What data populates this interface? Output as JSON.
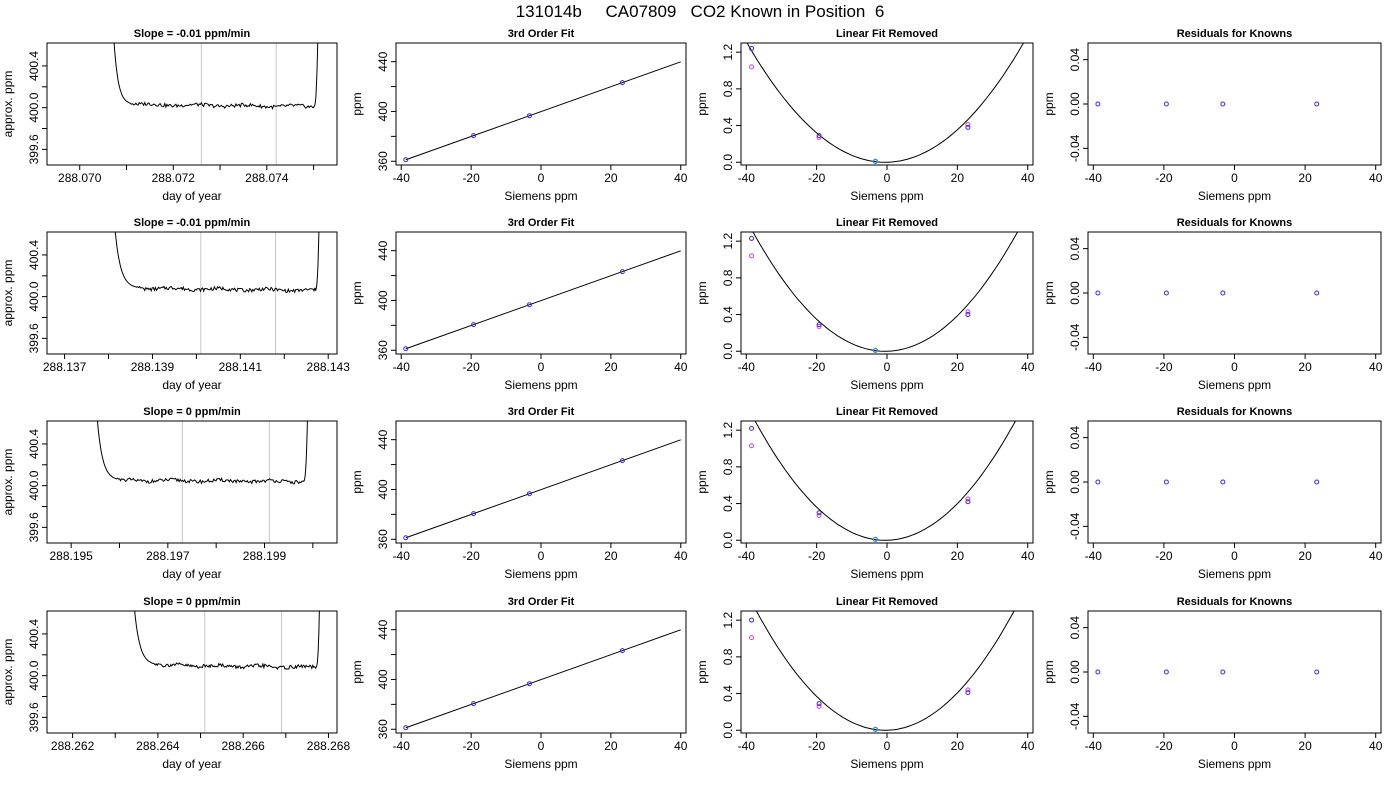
{
  "figure": {
    "title": "131014b     CA07809   CO2 Known in Position  6"
  },
  "colors": {
    "trace": "#000000",
    "marker_lines": "#c8c8c8",
    "point_blue": "#3b2bd6",
    "point_magenta": "#d040d0",
    "point_cyan": "#1ea0d8",
    "axis": "#000000"
  },
  "chart_data": [
    {
      "type": "line",
      "panel": "row1-time",
      "title": "Slope =  -0.01  ppm/min",
      "xlabel": "day of year",
      "ylabel": "approx. ppm",
      "xlim": [
        288.0693,
        288.0755
      ],
      "ylim": [
        399.45,
        400.62
      ],
      "x_ticks": [
        288.07,
        288.071,
        288.072,
        288.073,
        288.074,
        288.075
      ],
      "x_tick_labels": [
        "288.070",
        "",
        "288.072",
        "",
        "288.074",
        ""
      ],
      "y_ticks": [
        399.6,
        399.8,
        400.0,
        400.2,
        400.4
      ],
      "y_tick_labels": [
        "399.6",
        "",
        "400.0",
        "",
        "400.4"
      ],
      "markers_x": [
        288.0726,
        288.0742
      ],
      "trace": {
        "start": 288.0707,
        "plateau_start": 288.0712,
        "plateau_end": 288.075,
        "end": 288.0751,
        "plateau_left": 400.03,
        "plateau_right": 400.01,
        "top": 400.9
      }
    },
    {
      "type": "scatter",
      "panel": "row1-fit",
      "title": "3rd Order Fit",
      "xlabel": "Siemens ppm",
      "ylabel": "ppm",
      "xlim": [
        -41.5,
        41.5
      ],
      "ylim": [
        357,
        455
      ],
      "x_ticks": [
        -40,
        -20,
        0,
        20,
        40
      ],
      "y_ticks": [
        360,
        380,
        400,
        420,
        440
      ],
      "y_tick_labels": [
        "360",
        "",
        "400",
        "",
        "440"
      ],
      "points": [
        [
          -38.7,
          361.2
        ],
        [
          -19.3,
          380.6
        ],
        [
          -3.3,
          396.6
        ],
        [
          23.3,
          423.2
        ]
      ],
      "fit_line": [
        [
          -38.7,
          361.2
        ],
        [
          40,
          439.9
        ]
      ]
    },
    {
      "type": "scatter",
      "panel": "row1-linear-removed",
      "title": "Linear Fit Removed",
      "xlabel": "Siemens ppm",
      "ylabel": "ppm",
      "xlim": [
        -41.5,
        41.5
      ],
      "ylim": [
        -0.03,
        1.3
      ],
      "x_ticks": [
        -40,
        -20,
        0,
        20,
        40
      ],
      "y_ticks": [
        0.0,
        0.4,
        0.8,
        1.2
      ],
      "y_tick_labels": [
        "0.0",
        "0.4",
        "0.8",
        "1.2"
      ],
      "points_blue": [
        [
          -38.5,
          1.24
        ],
        [
          -19.3,
          0.29
        ],
        [
          -3.3,
          0.01
        ],
        [
          23.0,
          0.38
        ]
      ],
      "points_magenta": [
        [
          -38.5,
          1.04
        ],
        [
          -19.3,
          0.27
        ],
        [
          -3.3,
          0.01
        ],
        [
          23.0,
          0.41
        ]
      ],
      "points_cyan": [
        [
          -3.3,
          0.01
        ]
      ],
      "curve": {
        "vertex": -0.5,
        "a": 0.000842,
        "c": 0.0
      }
    },
    {
      "type": "scatter",
      "panel": "row1-residuals",
      "title": "Residuals for Knowns",
      "xlabel": "Siemens ppm",
      "ylabel": "ppm",
      "xlim": [
        -41.5,
        41.5
      ],
      "ylim": [
        -0.055,
        0.055
      ],
      "x_ticks": [
        -40,
        -20,
        0,
        20,
        40
      ],
      "y_ticks": [
        -0.04,
        0.0,
        0.04
      ],
      "y_tick_labels": [
        "-0.04",
        "0.00",
        "0.04"
      ],
      "points": [
        [
          -38.7,
          0.0
        ],
        [
          -19.3,
          0.0
        ],
        [
          -3.3,
          0.0
        ],
        [
          23.3,
          0.0
        ]
      ]
    },
    {
      "type": "line",
      "panel": "row2-time",
      "title": "Slope =  -0.01  ppm/min",
      "xlabel": "day of year",
      "ylabel": "approx. ppm",
      "xlim": [
        288.1366,
        288.1432
      ],
      "ylim": [
        399.45,
        400.62
      ],
      "x_ticks": [
        288.137,
        288.138,
        288.139,
        288.14,
        288.141,
        288.142,
        288.143
      ],
      "x_tick_labels": [
        "288.137",
        "",
        "288.139",
        "",
        "288.141",
        "",
        "288.143"
      ],
      "y_ticks": [
        399.6,
        399.8,
        400.0,
        400.2,
        400.4
      ],
      "y_tick_labels": [
        "399.6",
        "",
        "400.0",
        "",
        "400.4"
      ],
      "markers_x": [
        288.1401,
        288.1418
      ],
      "trace": {
        "start": 288.1381,
        "plateau_start": 288.1388,
        "plateau_end": 288.1427,
        "end": 288.1428,
        "plateau_left": 400.08,
        "plateau_right": 400.06,
        "top": 400.9
      }
    },
    {
      "type": "scatter",
      "panel": "row2-fit",
      "title": "3rd Order Fit",
      "xlabel": "Siemens ppm",
      "ylabel": "ppm",
      "xlim": [
        -41.5,
        41.5
      ],
      "ylim": [
        357,
        455
      ],
      "x_ticks": [
        -40,
        -20,
        0,
        20,
        40
      ],
      "y_ticks": [
        360,
        380,
        400,
        420,
        440
      ],
      "y_tick_labels": [
        "360",
        "",
        "400",
        "",
        "440"
      ],
      "points": [
        [
          -38.7,
          361.2
        ],
        [
          -19.3,
          380.6
        ],
        [
          -3.3,
          396.6
        ],
        [
          23.3,
          423.2
        ]
      ],
      "fit_line": [
        [
          -38.7,
          361.2
        ],
        [
          40,
          439.9
        ]
      ]
    },
    {
      "type": "scatter",
      "panel": "row2-linear-removed",
      "title": "Linear Fit Removed",
      "xlabel": "Siemens ppm",
      "ylabel": "ppm",
      "xlim": [
        -41.5,
        41.5
      ],
      "ylim": [
        -0.03,
        1.3
      ],
      "x_ticks": [
        -40,
        -20,
        0,
        20,
        40
      ],
      "y_ticks": [
        0.0,
        0.4,
        0.8,
        1.2
      ],
      "y_tick_labels": [
        "0.0",
        "0.4",
        "0.8",
        "1.2"
      ],
      "points_blue": [
        [
          -38.5,
          1.23
        ],
        [
          -19.3,
          0.29
        ],
        [
          -3.3,
          0.01
        ],
        [
          23.0,
          0.4
        ]
      ],
      "points_magenta": [
        [
          -38.5,
          1.04
        ],
        [
          -19.3,
          0.27
        ],
        [
          -3.3,
          0.01
        ],
        [
          23.0,
          0.43
        ]
      ],
      "points_cyan": [
        [
          -3.3,
          0.01
        ]
      ],
      "curve": {
        "vertex": -0.5,
        "a": 0.00092,
        "c": 0.0
      }
    },
    {
      "type": "scatter",
      "panel": "row2-residuals",
      "title": "Residuals for Knowns",
      "xlabel": "Siemens ppm",
      "ylabel": "ppm",
      "xlim": [
        -41.5,
        41.5
      ],
      "ylim": [
        -0.055,
        0.055
      ],
      "x_ticks": [
        -40,
        -20,
        0,
        20,
        40
      ],
      "y_ticks": [
        -0.04,
        0.0,
        0.04
      ],
      "y_tick_labels": [
        "-0.04",
        "0.00",
        "0.04"
      ],
      "points": [
        [
          -38.7,
          0.0
        ],
        [
          -19.3,
          0.0
        ],
        [
          -3.3,
          0.0
        ],
        [
          23.3,
          0.0
        ]
      ]
    },
    {
      "type": "line",
      "panel": "row3-time",
      "title": "Slope =  0  ppm/min",
      "xlabel": "day of year",
      "ylabel": "approx. ppm",
      "xlim": [
        288.1945,
        288.2005
      ],
      "ylim": [
        399.45,
        400.62
      ],
      "x_ticks": [
        288.195,
        288.196,
        288.197,
        288.198,
        288.199,
        288.2
      ],
      "x_tick_labels": [
        "288.195",
        "",
        "288.197",
        "",
        "288.199",
        ""
      ],
      "y_ticks": [
        399.6,
        399.8,
        400.0,
        400.2,
        400.4
      ],
      "y_tick_labels": [
        "399.6",
        "",
        "400.0",
        "",
        "400.4"
      ],
      "markers_x": [
        288.1973,
        288.1991
      ],
      "trace": {
        "start": 288.1955,
        "plateau_start": 288.1961,
        "plateau_end": 288.1998,
        "end": 288.1999,
        "plateau_left": 400.05,
        "plateau_right": 400.04,
        "top": 400.9
      }
    },
    {
      "type": "scatter",
      "panel": "row3-fit",
      "title": "3rd Order Fit",
      "xlabel": "Siemens ppm",
      "ylabel": "ppm",
      "xlim": [
        -41.5,
        41.5
      ],
      "ylim": [
        357,
        455
      ],
      "x_ticks": [
        -40,
        -20,
        0,
        20,
        40
      ],
      "y_ticks": [
        360,
        380,
        400,
        420,
        440
      ],
      "y_tick_labels": [
        "360",
        "",
        "400",
        "",
        "440"
      ],
      "points": [
        [
          -38.7,
          361.2
        ],
        [
          -19.3,
          380.6
        ],
        [
          -3.3,
          396.6
        ],
        [
          23.3,
          423.2
        ]
      ],
      "fit_line": [
        [
          -38.7,
          361.2
        ],
        [
          40,
          439.9
        ]
      ]
    },
    {
      "type": "scatter",
      "panel": "row3-linear-removed",
      "title": "Linear Fit Removed",
      "xlabel": "Siemens ppm",
      "ylabel": "ppm",
      "xlim": [
        -41.5,
        41.5
      ],
      "ylim": [
        -0.03,
        1.3
      ],
      "x_ticks": [
        -40,
        -20,
        0,
        20,
        40
      ],
      "y_ticks": [
        0.0,
        0.4,
        0.8,
        1.2
      ],
      "y_tick_labels": [
        "0.0",
        "0.4",
        "0.8",
        "1.2"
      ],
      "points_blue": [
        [
          -38.5,
          1.22
        ],
        [
          -19.3,
          0.3
        ],
        [
          -3.3,
          0.01
        ],
        [
          23.0,
          0.42
        ]
      ],
      "points_magenta": [
        [
          -38.5,
          1.03
        ],
        [
          -19.3,
          0.27
        ],
        [
          -3.3,
          0.01
        ],
        [
          23.0,
          0.45
        ]
      ],
      "points_cyan": [
        [
          -3.3,
          0.01
        ]
      ],
      "curve": {
        "vertex": -0.5,
        "a": 0.00095,
        "c": 0.0
      }
    },
    {
      "type": "scatter",
      "panel": "row3-residuals",
      "title": "Residuals for Knowns",
      "xlabel": "Siemens ppm",
      "ylabel": "ppm",
      "xlim": [
        -41.5,
        41.5
      ],
      "ylim": [
        -0.055,
        0.055
      ],
      "x_ticks": [
        -40,
        -20,
        0,
        20,
        40
      ],
      "y_ticks": [
        -0.04,
        0.0,
        0.04
      ],
      "y_tick_labels": [
        "-0.04",
        "0.00",
        "0.04"
      ],
      "points": [
        [
          -38.7,
          0.0
        ],
        [
          -19.3,
          0.0
        ],
        [
          -3.3,
          0.0
        ],
        [
          23.3,
          0.0
        ]
      ]
    },
    {
      "type": "line",
      "panel": "row4-time",
      "title": "Slope =  0  ppm/min",
      "xlabel": "day of year",
      "ylabel": "approx. ppm",
      "xlim": [
        288.2614,
        288.2682
      ],
      "ylim": [
        399.45,
        400.62
      ],
      "x_ticks": [
        288.262,
        288.263,
        288.264,
        288.265,
        288.266,
        288.267,
        288.268
      ],
      "x_tick_labels": [
        "288.262",
        "",
        "288.264",
        "",
        "288.266",
        "",
        "288.268"
      ],
      "y_ticks": [
        399.6,
        399.8,
        400.0,
        400.2,
        400.4
      ],
      "y_tick_labels": [
        "399.6",
        "",
        "400.0",
        "",
        "400.4"
      ],
      "markers_x": [
        288.2651,
        288.2669
      ],
      "trace": {
        "start": 288.2634,
        "plateau_start": 288.2641,
        "plateau_end": 288.2677,
        "end": 288.2678,
        "plateau_left": 400.1,
        "plateau_right": 400.08,
        "top": 400.9
      }
    },
    {
      "type": "scatter",
      "panel": "row4-fit",
      "title": "3rd Order Fit",
      "xlabel": "Siemens ppm",
      "ylabel": "ppm",
      "xlim": [
        -41.5,
        41.5
      ],
      "ylim": [
        357,
        455
      ],
      "x_ticks": [
        -40,
        -20,
        0,
        20,
        40
      ],
      "y_ticks": [
        360,
        380,
        400,
        420,
        440
      ],
      "y_tick_labels": [
        "360",
        "",
        "400",
        "",
        "440"
      ],
      "points": [
        [
          -38.7,
          361.2
        ],
        [
          -19.3,
          380.6
        ],
        [
          -3.3,
          396.6
        ],
        [
          23.3,
          423.2
        ]
      ],
      "fit_line": [
        [
          -38.7,
          361.2
        ],
        [
          40,
          439.9
        ]
      ]
    },
    {
      "type": "scatter",
      "panel": "row4-linear-removed",
      "title": "Linear Fit Removed",
      "xlabel": "Siemens ppm",
      "ylabel": "ppm",
      "xlim": [
        -41.5,
        41.5
      ],
      "ylim": [
        -0.03,
        1.3
      ],
      "x_ticks": [
        -40,
        -20,
        0,
        20,
        40
      ],
      "y_ticks": [
        0.0,
        0.4,
        0.8,
        1.2
      ],
      "y_tick_labels": [
        "0.0",
        "0.4",
        "0.8",
        "1.2"
      ],
      "points_blue": [
        [
          -38.5,
          1.2
        ],
        [
          -19.3,
          0.29
        ],
        [
          -3.3,
          0.01
        ],
        [
          23.0,
          0.41
        ]
      ],
      "points_magenta": [
        [
          -38.5,
          1.01
        ],
        [
          -19.3,
          0.26
        ],
        [
          -3.3,
          0.01
        ],
        [
          23.0,
          0.44
        ]
      ],
      "points_cyan": [
        [
          -3.3,
          0.01
        ]
      ],
      "curve": {
        "vertex": -0.5,
        "a": 0.00097,
        "c": 0.0
      }
    },
    {
      "type": "scatter",
      "panel": "row4-residuals",
      "title": "Residuals for Knowns",
      "xlabel": "Siemens ppm",
      "ylabel": "ppm",
      "xlim": [
        -41.5,
        41.5
      ],
      "ylim": [
        -0.055,
        0.055
      ],
      "x_ticks": [
        -40,
        -20,
        0,
        20,
        40
      ],
      "y_ticks": [
        -0.04,
        0.0,
        0.04
      ],
      "y_tick_labels": [
        "-0.04",
        "0.00",
        "0.04"
      ],
      "points": [
        [
          -38.7,
          0.0
        ],
        [
          -19.3,
          0.0
        ],
        [
          -3.3,
          0.0
        ],
        [
          23.3,
          0.0
        ]
      ]
    }
  ]
}
